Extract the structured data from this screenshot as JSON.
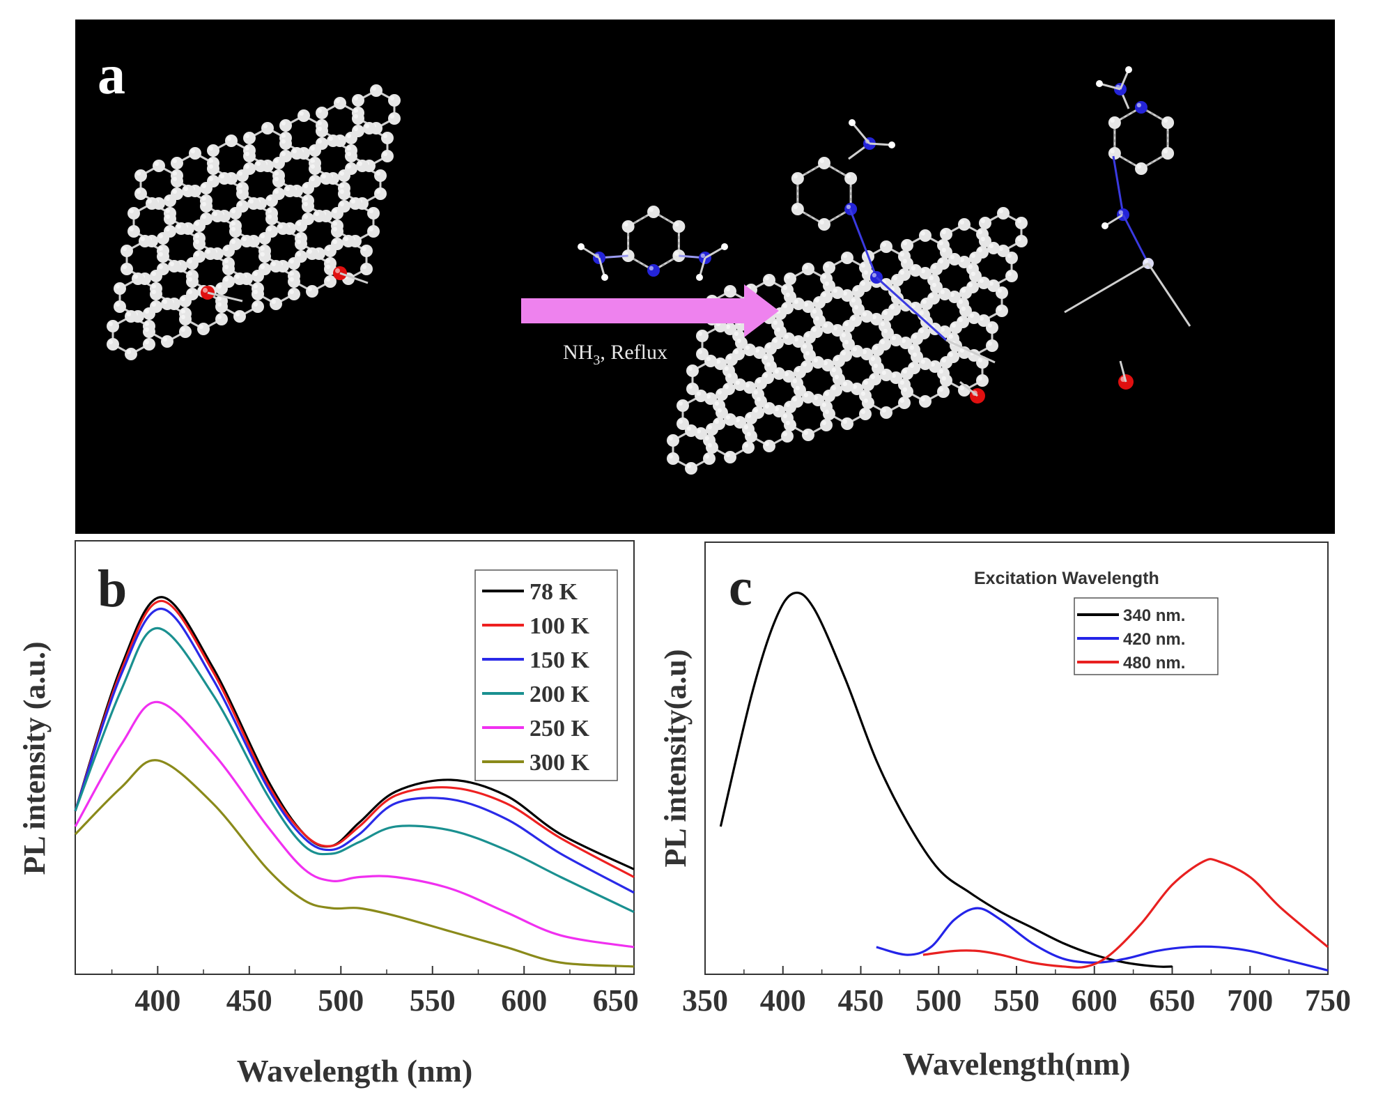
{
  "panel_a": {
    "letter": "a",
    "arrow_label_base": "NH",
    "arrow_label_sub": "3",
    "arrow_label_rest": ", Reflux",
    "colors": {
      "carbon": "#e6e6e6",
      "oxygen": "#e01010",
      "nitrogen": "#2424d8",
      "hydrogen": "#ffffff",
      "arrow": "#ee82ee"
    }
  },
  "chart_data": [
    {
      "type": "line",
      "panel": "b",
      "xlabel": "Wavelength (nm)",
      "ylabel": "PL intensity (a.u.)",
      "xlim": [
        355,
        660
      ],
      "ylim": [
        0,
        1
      ],
      "xticks": [
        400,
        450,
        500,
        550,
        600,
        650
      ],
      "yticks_shown": false,
      "legend": "top-right",
      "series": [
        {
          "name": "78 K",
          "color": "#000000",
          "x": [
            355,
            380,
            402,
            430,
            460,
            480,
            495,
            510,
            530,
            560,
            590,
            620,
            660
          ],
          "y": [
            0.42,
            0.79,
            0.97,
            0.79,
            0.5,
            0.36,
            0.33,
            0.39,
            0.47,
            0.5,
            0.46,
            0.36,
            0.27
          ]
        },
        {
          "name": "100 K",
          "color": "#ee2020",
          "x": [
            355,
            380,
            402,
            430,
            460,
            480,
            495,
            510,
            530,
            560,
            590,
            620,
            660
          ],
          "y": [
            0.42,
            0.78,
            0.96,
            0.78,
            0.49,
            0.36,
            0.33,
            0.38,
            0.46,
            0.48,
            0.44,
            0.35,
            0.25
          ]
        },
        {
          "name": "150 K",
          "color": "#2a2ae8",
          "x": [
            355,
            380,
            402,
            430,
            460,
            480,
            495,
            510,
            530,
            560,
            590,
            620,
            660
          ],
          "y": [
            0.42,
            0.77,
            0.94,
            0.76,
            0.48,
            0.35,
            0.32,
            0.36,
            0.44,
            0.45,
            0.4,
            0.31,
            0.21
          ]
        },
        {
          "name": "200 K",
          "color": "#1a9090",
          "x": [
            355,
            380,
            400,
            430,
            460,
            480,
            495,
            510,
            530,
            560,
            590,
            620,
            660
          ],
          "y": [
            0.42,
            0.73,
            0.89,
            0.72,
            0.46,
            0.33,
            0.31,
            0.34,
            0.38,
            0.37,
            0.32,
            0.25,
            0.16
          ]
        },
        {
          "name": "250 K",
          "color": "#f030f0",
          "x": [
            355,
            380,
            400,
            430,
            460,
            480,
            495,
            510,
            530,
            560,
            590,
            620,
            660
          ],
          "y": [
            0.38,
            0.59,
            0.7,
            0.57,
            0.38,
            0.27,
            0.24,
            0.25,
            0.25,
            0.22,
            0.16,
            0.1,
            0.07
          ]
        },
        {
          "name": "300 K",
          "color": "#8a8a1a",
          "x": [
            355,
            380,
            400,
            430,
            460,
            480,
            495,
            510,
            530,
            560,
            590,
            620,
            660
          ],
          "y": [
            0.36,
            0.48,
            0.55,
            0.44,
            0.27,
            0.19,
            0.17,
            0.17,
            0.15,
            0.11,
            0.07,
            0.03,
            0.02
          ]
        }
      ]
    },
    {
      "type": "line",
      "panel": "c",
      "xlabel": "Wavelength(nm)",
      "ylabel": "PL intensity(a.u)",
      "xlim": [
        350,
        750
      ],
      "ylim": [
        0,
        1
      ],
      "xticks": [
        350,
        400,
        450,
        500,
        550,
        600,
        650,
        700,
        750
      ],
      "yticks_shown": false,
      "legend_title": "Excitation Wavelength",
      "legend": "top-right",
      "series": [
        {
          "name": "340 nm.",
          "color": "#000000",
          "x": [
            360,
            380,
            395,
            407,
            420,
            440,
            460,
            480,
            500,
            520,
            540,
            560,
            580,
            600,
            620,
            640,
            650
          ],
          "y": [
            0.38,
            0.72,
            0.91,
            0.98,
            0.94,
            0.76,
            0.55,
            0.39,
            0.27,
            0.21,
            0.16,
            0.12,
            0.08,
            0.05,
            0.03,
            0.02,
            0.02
          ]
        },
        {
          "name": "420 nm.",
          "color": "#2424e8",
          "x": [
            460,
            480,
            495,
            510,
            525,
            540,
            560,
            580,
            600,
            620,
            640,
            660,
            680,
            700,
            720,
            750
          ],
          "y": [
            0.07,
            0.05,
            0.07,
            0.14,
            0.17,
            0.14,
            0.08,
            0.04,
            0.03,
            0.04,
            0.06,
            0.07,
            0.07,
            0.06,
            0.04,
            0.01
          ]
        },
        {
          "name": "480 nm.",
          "color": "#e82020",
          "x": [
            490,
            510,
            525,
            540,
            560,
            580,
            595,
            610,
            630,
            650,
            670,
            680,
            700,
            720,
            750
          ],
          "y": [
            0.05,
            0.06,
            0.06,
            0.05,
            0.03,
            0.02,
            0.02,
            0.05,
            0.13,
            0.23,
            0.29,
            0.29,
            0.25,
            0.17,
            0.07
          ]
        }
      ]
    }
  ],
  "panel_b": {
    "letter": "b"
  },
  "panel_c": {
    "letter": "c"
  }
}
